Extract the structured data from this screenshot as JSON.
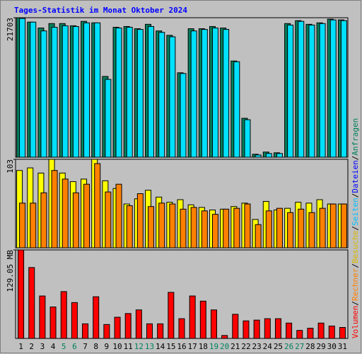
{
  "chart_data": [
    {
      "type": "bar",
      "title": "Tages-Statistik im Monat Oktober 2024",
      "ylim": [
        0,
        21703
      ],
      "yticks": [
        21703
      ],
      "series": [
        {
          "color": "#00805c",
          "values": [
            21703,
            21018,
            20104,
            20790,
            20790,
            20447,
            21132,
            20904,
            12565,
            20219,
            20333,
            19990,
            20676,
            19648,
            18962,
            13136,
            19990,
            19990,
            20333,
            20104,
            14964,
            6054,
            457,
            800,
            685,
            20790,
            21247,
            20676,
            20904,
            21475,
            21361
          ]
        },
        {
          "color": "#00e0ff",
          "values": [
            21589,
            21018,
            19647,
            20219,
            20447,
            20333,
            20904,
            20904,
            12108,
            20104,
            20219,
            19876,
            20333,
            19419,
            18733,
            13022,
            19647,
            19876,
            20104,
            19876,
            14850,
            5826,
            343,
            571,
            571,
            20561,
            21132,
            20561,
            20790,
            21361,
            21247
          ]
        }
      ]
    },
    {
      "type": "bar",
      "ylim": [
        0,
        103
      ],
      "yticks": [
        103
      ],
      "series": [
        {
          "color": "#ffff00",
          "values": [
            90,
            93,
            87,
            103,
            87,
            77,
            80,
            103,
            78,
            69,
            51,
            57,
            67,
            59,
            53,
            56,
            50,
            47,
            44,
            45,
            48,
            52,
            33,
            54,
            44,
            46,
            53,
            52,
            56,
            51,
            51
          ]
        },
        {
          "color": "#ff8000",
          "values": [
            52,
            52,
            64,
            90,
            80,
            64,
            74,
            98,
            65,
            74,
            49,
            63,
            48,
            52,
            51,
            45,
            47,
            43,
            39,
            45,
            46,
            51,
            27,
            43,
            46,
            41,
            45,
            41,
            46,
            51,
            51
          ]
        }
      ]
    },
    {
      "type": "bar",
      "ylim": [
        0,
        129.05
      ],
      "yticks": [
        {
          "value": 129.05,
          "label": "129.05 MB"
        }
      ],
      "categories": [
        "1",
        "2",
        "3",
        "4",
        "5",
        "6",
        "7",
        "8",
        "9",
        "10",
        "11",
        "12",
        "13",
        "14",
        "15",
        "16",
        "17",
        "18",
        "19",
        "20",
        "21",
        "22",
        "23",
        "24",
        "25",
        "26",
        "27",
        "28",
        "29",
        "30",
        "31"
      ],
      "weekend": [
        4,
        5,
        11,
        12,
        18,
        19,
        25,
        26
      ],
      "weekend_color": "#00805c",
      "series": [
        {
          "color": "#ff0000",
          "values": [
            129.05,
            103.4,
            61.9,
            45.9,
            68.3,
            52.3,
            21.3,
            60.8,
            20.3,
            30.9,
            36.3,
            41.6,
            21.3,
            21.3,
            67.2,
            28.8,
            61.9,
            54.4,
            41.6,
            4.3,
            35.2,
            25.6,
            26.7,
            28.8,
            28.8,
            22.4,
            11.7,
            14.9,
            22.4,
            18.1,
            16.0
          ]
        }
      ]
    }
  ],
  "legend": {
    "separator": "/",
    "items": [
      {
        "name": "Volumen",
        "color": "#ff0000"
      },
      {
        "name": "Rechner",
        "color": "#ff8000"
      },
      {
        "name": "Besuche",
        "color": "#d8b800"
      },
      {
        "name": "Seiten",
        "color": "#00c0ff"
      },
      {
        "name": "Dateien",
        "color": "#0000ff"
      },
      {
        "name": "Anfragen",
        "color": "#00805c"
      }
    ]
  }
}
